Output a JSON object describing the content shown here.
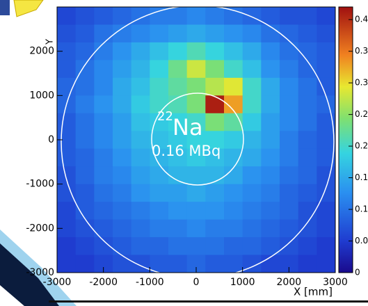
{
  "chart_data": {
    "type": "heatmap",
    "x_label": "X [mm]",
    "y_label": "Y",
    "annotations": {
      "isotope_mass": "22",
      "isotope": "Na",
      "activity": "0.16 MBq"
    },
    "xbins": [
      -3000,
      -2600,
      -2200,
      -1800,
      -1400,
      -1000,
      -600,
      -200,
      200,
      600,
      1000,
      1400,
      1800,
      2200,
      2600,
      3000
    ],
    "ybins": [
      3000,
      2600,
      2200,
      1800,
      1400,
      1000,
      600,
      200,
      -200,
      -600,
      -1000,
      -1400,
      -1800,
      -2200,
      -2600,
      -3000
    ],
    "z": [
      [
        0.06,
        0.07,
        0.08,
        0.09,
        0.1,
        0.11,
        0.11,
        0.12,
        0.11,
        0.1,
        0.09,
        0.08,
        0.07,
        0.07,
        0.06
      ],
      [
        0.07,
        0.08,
        0.1,
        0.11,
        0.12,
        0.13,
        0.14,
        0.15,
        0.14,
        0.13,
        0.12,
        0.1,
        0.09,
        0.08,
        0.07
      ],
      [
        0.08,
        0.09,
        0.11,
        0.13,
        0.15,
        0.17,
        0.19,
        0.21,
        0.19,
        0.17,
        0.15,
        0.12,
        0.1,
        0.09,
        0.08
      ],
      [
        0.08,
        0.1,
        0.12,
        0.14,
        0.16,
        0.19,
        0.23,
        0.28,
        0.24,
        0.2,
        0.17,
        0.13,
        0.11,
        0.09,
        0.08
      ],
      [
        0.09,
        0.1,
        0.12,
        0.15,
        0.17,
        0.2,
        0.22,
        0.24,
        0.27,
        0.29,
        0.2,
        0.15,
        0.12,
        0.1,
        0.08
      ],
      [
        0.09,
        0.11,
        0.13,
        0.15,
        0.18,
        0.2,
        0.21,
        0.24,
        0.41,
        0.33,
        0.2,
        0.15,
        0.12,
        0.1,
        0.09
      ],
      [
        0.08,
        0.1,
        0.12,
        0.14,
        0.17,
        0.18,
        0.19,
        0.2,
        0.24,
        0.22,
        0.18,
        0.14,
        0.12,
        0.1,
        0.08
      ],
      [
        0.08,
        0.1,
        0.12,
        0.14,
        0.16,
        0.17,
        0.18,
        0.19,
        0.19,
        0.18,
        0.16,
        0.14,
        0.11,
        0.09,
        0.08
      ],
      [
        0.08,
        0.09,
        0.11,
        0.13,
        0.15,
        0.16,
        0.17,
        0.18,
        0.17,
        0.16,
        0.15,
        0.13,
        0.11,
        0.09,
        0.08
      ],
      [
        0.07,
        0.09,
        0.11,
        0.12,
        0.14,
        0.15,
        0.16,
        0.16,
        0.16,
        0.15,
        0.13,
        0.12,
        0.1,
        0.09,
        0.07
      ],
      [
        0.07,
        0.08,
        0.1,
        0.11,
        0.13,
        0.14,
        0.14,
        0.15,
        0.14,
        0.13,
        0.12,
        0.11,
        0.09,
        0.08,
        0.07
      ],
      [
        0.06,
        0.08,
        0.09,
        0.1,
        0.11,
        0.12,
        0.13,
        0.13,
        0.13,
        0.12,
        0.11,
        0.1,
        0.09,
        0.07,
        0.06
      ],
      [
        0.06,
        0.07,
        0.08,
        0.09,
        0.1,
        0.11,
        0.11,
        0.12,
        0.11,
        0.11,
        0.1,
        0.09,
        0.08,
        0.07,
        0.06
      ],
      [
        0.05,
        0.06,
        0.07,
        0.08,
        0.09,
        0.09,
        0.1,
        0.1,
        0.1,
        0.09,
        0.09,
        0.08,
        0.07,
        0.06,
        0.05
      ],
      [
        0.05,
        0.05,
        0.06,
        0.07,
        0.07,
        0.08,
        0.08,
        0.09,
        0.08,
        0.08,
        0.07,
        0.06,
        0.06,
        0.05,
        0.05
      ]
    ],
    "xlim": [
      -3000,
      3000
    ],
    "ylim": [
      -3000,
      3000
    ],
    "zlim": [
      0,
      0.42
    ],
    "xticks": [
      -3000,
      -2000,
      -1000,
      0,
      1000,
      2000,
      3000
    ],
    "yticks": [
      -3000,
      -2000,
      -1000,
      0,
      1000,
      2000
    ],
    "zticks": [
      {
        "value": 0,
        "label": "0"
      },
      {
        "value": 0.05,
        "label": "0.0"
      },
      {
        "value": 0.1,
        "label": "0.1"
      },
      {
        "value": 0.15,
        "label": "0.1"
      },
      {
        "value": 0.2,
        "label": "0.2"
      },
      {
        "value": 0.25,
        "label": "0.2"
      },
      {
        "value": 0.3,
        "label": "0.3"
      },
      {
        "value": 0.35,
        "label": "0.3"
      },
      {
        "value": 0.4,
        "label": "0.4"
      }
    ]
  }
}
